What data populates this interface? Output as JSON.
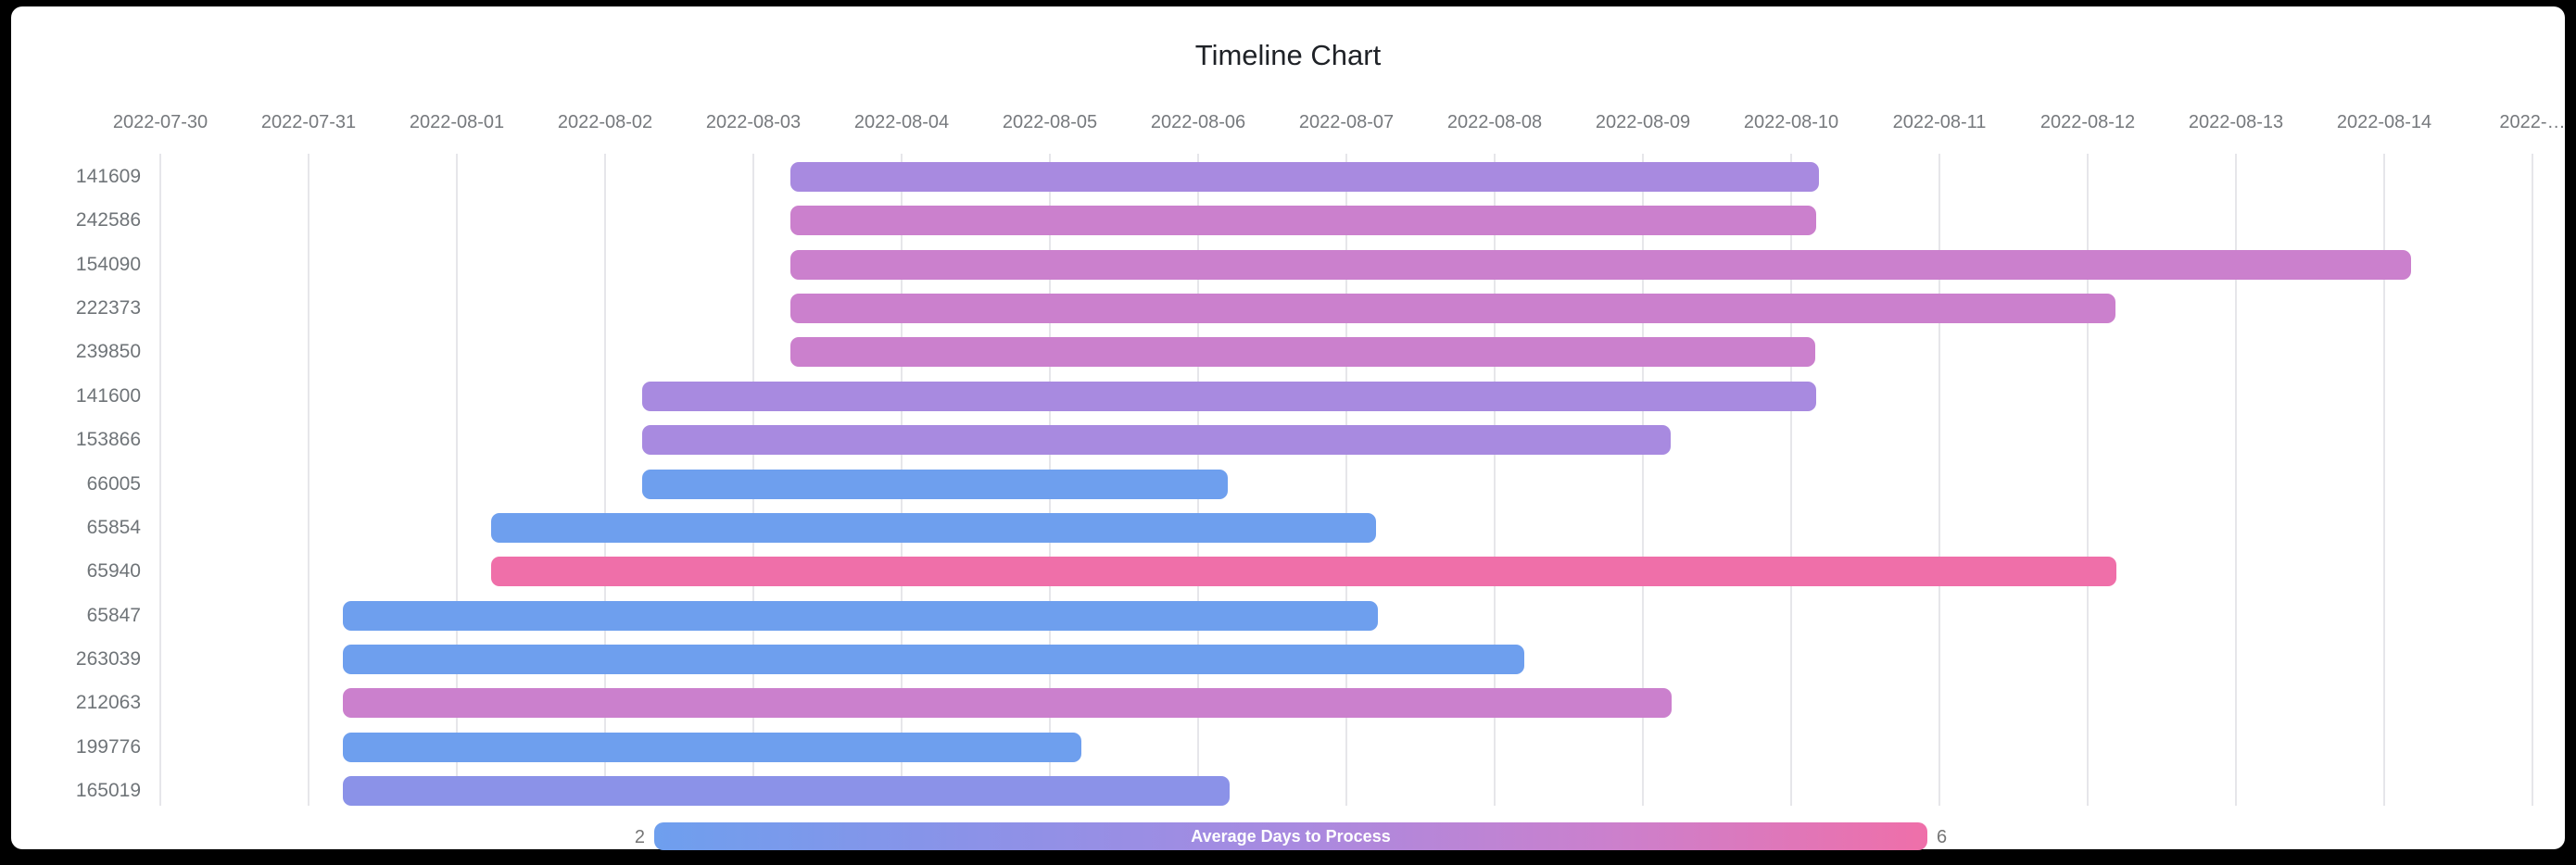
{
  "page": {
    "frame_color": "#000000",
    "card_background": "#ffffff"
  },
  "chart_data": {
    "type": "timeline",
    "title": "Timeline Chart",
    "x_axis": {
      "grid": true,
      "start_date": "2022-07-30",
      "days_per_tick": 1,
      "tick_labels": [
        "2022-07-30",
        "2022-07-31",
        "2022-08-01",
        "2022-08-02",
        "2022-08-03",
        "2022-08-04",
        "2022-08-05",
        "2022-08-06",
        "2022-08-07",
        "2022-08-08",
        "2022-08-09",
        "2022-08-10",
        "2022-08-11",
        "2022-08-12",
        "2022-08-13",
        "2022-08-14",
        "2022-…"
      ]
    },
    "y_axis": {
      "categories": [
        "141609",
        "242586",
        "154090",
        "222373",
        "239850",
        "141600",
        "153866",
        "66005",
        "65854",
        "65940",
        "65847",
        "263039",
        "212063",
        "199776",
        "165019"
      ]
    },
    "rows": [
      {
        "id": "141609",
        "start": "2022-08-03",
        "end": "2022-08-10",
        "start_day": 4.25,
        "end_day": 11.19,
        "color": "#a88ae0",
        "avg_days_to_process": 4
      },
      {
        "id": "242586",
        "start": "2022-08-03",
        "end": "2022-08-10",
        "start_day": 4.25,
        "end_day": 11.17,
        "color": "#cb80cd",
        "avg_days_to_process": 5
      },
      {
        "id": "154090",
        "start": "2022-08-03",
        "end": "2022-08-14",
        "start_day": 4.25,
        "end_day": 15.18,
        "color": "#cb80cd",
        "avg_days_to_process": 5
      },
      {
        "id": "222373",
        "start": "2022-08-03",
        "end": "2022-08-12",
        "start_day": 4.25,
        "end_day": 13.19,
        "color": "#cb80cd",
        "avg_days_to_process": 5
      },
      {
        "id": "239850",
        "start": "2022-08-03",
        "end": "2022-08-10",
        "start_day": 4.25,
        "end_day": 11.16,
        "color": "#cb80cd",
        "avg_days_to_process": 5
      },
      {
        "id": "141600",
        "start": "2022-08-02",
        "end": "2022-08-10",
        "start_day": 3.25,
        "end_day": 11.17,
        "color": "#a88ae0",
        "avg_days_to_process": 4
      },
      {
        "id": "153866",
        "start": "2022-08-02",
        "end": "2022-08-09",
        "start_day": 3.25,
        "end_day": 10.19,
        "color": "#a88ae0",
        "avg_days_to_process": 4
      },
      {
        "id": "66005",
        "start": "2022-08-02",
        "end": "2022-08-06",
        "start_day": 3.25,
        "end_day": 7.2,
        "color": "#6e9fee",
        "avg_days_to_process": 2
      },
      {
        "id": "65854",
        "start": "2022-08-01",
        "end": "2022-08-07",
        "start_day": 2.23,
        "end_day": 8.2,
        "color": "#6e9fee",
        "avg_days_to_process": 2
      },
      {
        "id": "65940",
        "start": "2022-08-01",
        "end": "2022-08-12",
        "start_day": 2.23,
        "end_day": 13.19,
        "color": "#ef6fa9",
        "avg_days_to_process": 6
      },
      {
        "id": "65847",
        "start": "2022-07-31",
        "end": "2022-08-07",
        "start_day": 1.23,
        "end_day": 8.21,
        "color": "#6e9fee",
        "avg_days_to_process": 2
      },
      {
        "id": "263039",
        "start": "2022-07-31",
        "end": "2022-08-08",
        "start_day": 1.23,
        "end_day": 9.2,
        "color": "#6e9fee",
        "avg_days_to_process": 2
      },
      {
        "id": "212063",
        "start": "2022-07-31",
        "end": "2022-08-09",
        "start_day": 1.23,
        "end_day": 10.19,
        "color": "#cb80cd",
        "avg_days_to_process": 5
      },
      {
        "id": "199776",
        "start": "2022-07-31",
        "end": "2022-08-05",
        "start_day": 1.23,
        "end_day": 6.21,
        "color": "#6e9fee",
        "avg_days_to_process": 2
      },
      {
        "id": "165019",
        "start": "2022-07-31",
        "end": "2022-08-06",
        "start_day": 1.23,
        "end_day": 7.21,
        "color": "#8b92e8",
        "avg_days_to_process": 3
      }
    ],
    "legend": {
      "label": "Average Days to Process",
      "min": "2",
      "max": "6",
      "gradient": [
        "#6e9fee",
        "#8b92e8",
        "#a88ae0",
        "#cb80cd",
        "#ef6fa9"
      ]
    },
    "layout_hints": {
      "legend_position": "bottom",
      "bar_color_scale": "blue(2) to pink(6)"
    }
  }
}
